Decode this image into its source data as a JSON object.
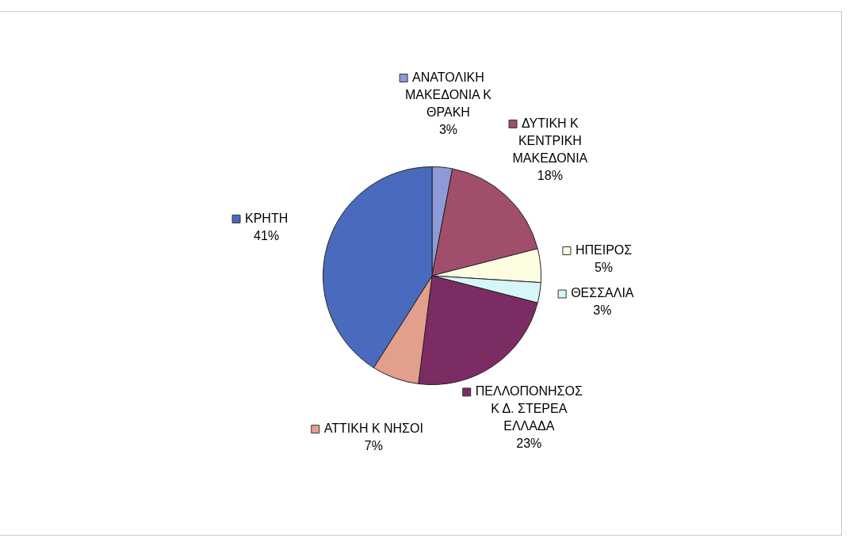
{
  "chart_data": {
    "type": "pie",
    "categories": [
      "ΑΝΑΤΟΛΙΚΗ ΜΑΚΕΔΟΝΙΑ Κ ΘΡΑΚΗ",
      "ΔΥΤΙΚΗ Κ ΚΕΝΤΡΙΚΗ ΜΑΚΕΔΟΝΙΑ",
      "ΗΠΕΙΡΟΣ",
      "ΘΕΣΣΑΛΙΑ",
      "ΠΕΛΛΟΠΟΝΗΣΟΣ Κ Δ. ΣΤΕΡΕΑ ΕΛΛΑΔΑ",
      "ΑΤΤΙΚΗ Κ ΝΗΣΟΙ",
      "ΚΡΗΤΗ"
    ],
    "values": [
      3,
      18,
      5,
      3,
      23,
      7,
      41
    ],
    "colors": [
      "#8c9ad8",
      "#a04e6c",
      "#fdfde2",
      "#d6f6f8",
      "#7b2c62",
      "#e29f8c",
      "#4a6bbd"
    ],
    "value_labels": [
      "3%",
      "18%",
      "5%",
      "3%",
      "23%",
      "7%",
      "41%"
    ],
    "legend": "right"
  }
}
